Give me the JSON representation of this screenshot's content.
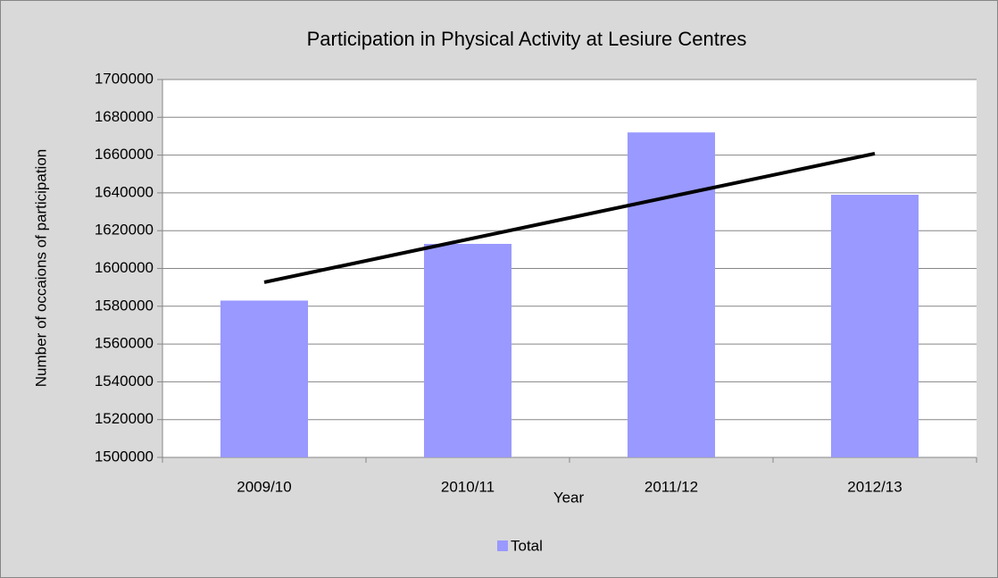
{
  "chart_data": {
    "type": "bar",
    "title": "Participation in Physical Activity at Lesiure Centres",
    "x_label": "Year",
    "y_label": "Number of occaions of participation",
    "categories": [
      "2009/10",
      "2010/11",
      "2011/12",
      "2012/13"
    ],
    "series": [
      {
        "name": "Total",
        "color": "#9999ff",
        "values": [
          1583000,
          1613000,
          1672000,
          1639000
        ]
      }
    ],
    "trendline": {
      "color": "#000000",
      "values": [
        1592700,
        1615400,
        1638100,
        1660800
      ]
    },
    "ylim": [
      1500000,
      1700000
    ],
    "yticks": [
      1500000,
      1520000,
      1540000,
      1560000,
      1580000,
      1600000,
      1620000,
      1640000,
      1660000,
      1680000,
      1700000
    ],
    "grid": true,
    "legend": "bottom"
  }
}
